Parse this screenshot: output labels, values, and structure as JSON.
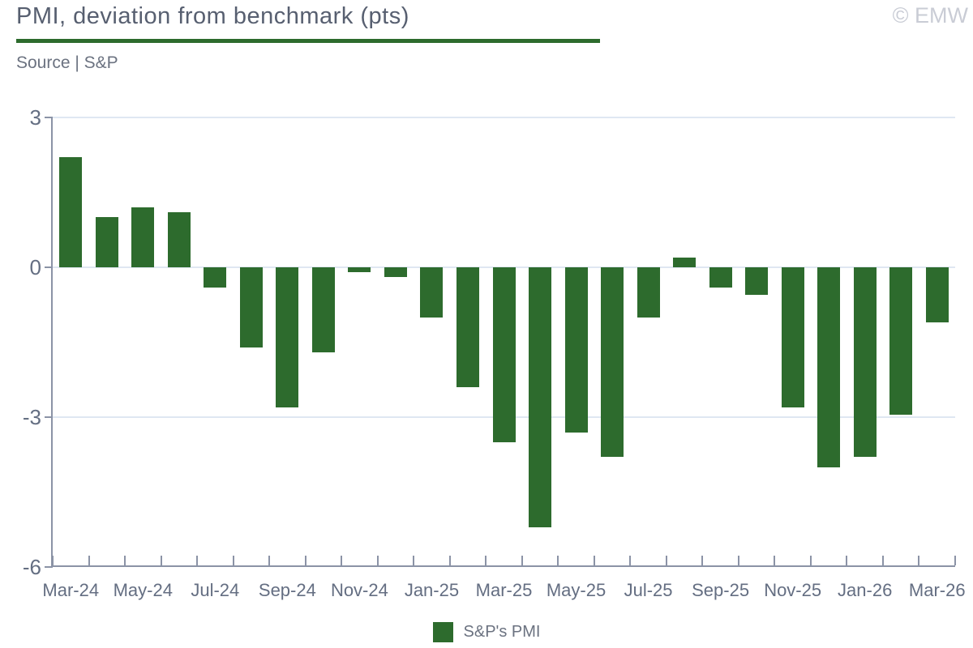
{
  "header": {
    "title": "PMI, deviation from benchmark (pts)",
    "source": "Source | S&P",
    "watermark": "© EMW"
  },
  "legend": {
    "label": "S&P's PMI"
  },
  "colors": {
    "bar": "#2d6b2d",
    "accent_rule": "#2d6b2d",
    "title_text": "#575f70",
    "source_text": "#6b7280",
    "axis_text": "#646e82",
    "axis_line": "#8b93a6",
    "gridline": "#dfe7f2",
    "watermark_text": "#c9ccd5"
  },
  "chart_data": {
    "type": "bar",
    "title": "PMI, deviation from benchmark (pts)",
    "series_name": "S&P's PMI",
    "categories": [
      "Mar-24",
      "Apr-24",
      "May-24",
      "Jun-24",
      "Jul-24",
      "Aug-24",
      "Sep-24",
      "Oct-24",
      "Nov-24",
      "Dec-24",
      "Jan-25",
      "Feb-25",
      "Mar-25",
      "Apr-25",
      "May-25",
      "Jun-25",
      "Jul-25",
      "Aug-25",
      "Sep-25",
      "Oct-25",
      "Nov-25",
      "Dec-25",
      "Jan-26",
      "Feb-26",
      "Mar-26"
    ],
    "values": [
      2.2,
      1.0,
      1.2,
      1.1,
      -0.4,
      -1.6,
      -2.8,
      -1.7,
      -0.1,
      -0.2,
      -1.0,
      -2.4,
      -3.5,
      -5.2,
      -3.3,
      -3.8,
      -1.0,
      0.2,
      -0.4,
      -0.55,
      -2.8,
      -4.0,
      -3.8,
      -2.95,
      -1.1
    ],
    "xtick_labels": [
      "Mar-24",
      "May-24",
      "Jul-24",
      "Sep-24",
      "Nov-24",
      "Jan-25",
      "Mar-25",
      "May-25",
      "Jul-25",
      "Sep-25",
      "Nov-25",
      "Jan-26",
      "Mar-26"
    ],
    "xtick_label_every": 2,
    "ylim": [
      -6,
      3
    ],
    "yticks": [
      3,
      0,
      -3,
      -6
    ],
    "grid": "horizontal",
    "legend_position": "bottom"
  }
}
